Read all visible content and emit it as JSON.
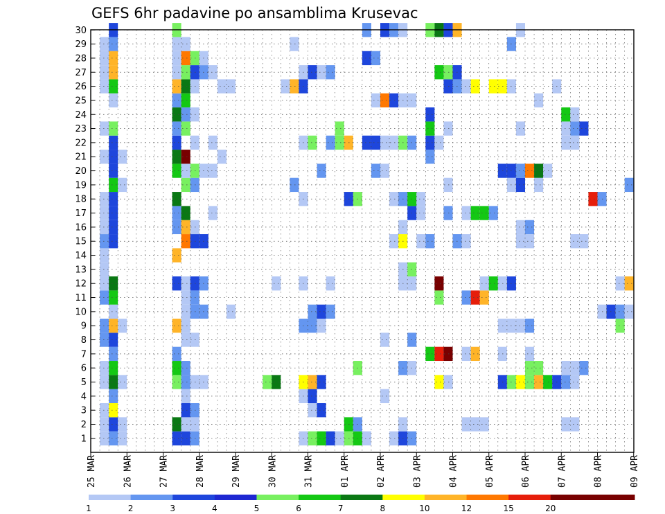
{
  "chart_data": {
    "type": "heatmap",
    "title": "GEFS 6hr padavine po ansamblima Krusevac",
    "xlabel": "",
    "ylabel": "",
    "members": [
      1,
      2,
      3,
      4,
      5,
      6,
      7,
      8,
      9,
      10,
      11,
      12,
      13,
      14,
      15,
      16,
      17,
      18,
      19,
      20,
      21,
      22,
      23,
      24,
      25,
      26,
      27,
      28,
      29,
      30
    ],
    "x_tick_labels": [
      "25 MAR",
      "26 MAR",
      "27 MAR",
      "28 MAR",
      "29 MAR",
      "30 MAR",
      "31 MAR",
      "01 APR",
      "02 APR",
      "03 APR",
      "04 APR",
      "05 APR",
      "06 APR",
      "07 APR",
      "08 APR",
      "09 APR"
    ],
    "time_step": "6hr",
    "ylim": [
      1,
      30
    ],
    "grid": true,
    "legend": {
      "position": "bottom",
      "levels": [
        "1",
        "2",
        "3",
        "4",
        "5",
        "6",
        "7",
        "8",
        "10",
        "12",
        "15",
        "20"
      ],
      "colors": [
        "#b4c8f5",
        "#6496f0",
        "#1e46dc",
        "#1e28d2",
        "#78f060",
        "#14c814",
        "#0a7814",
        "#ffff00",
        "#ffb428",
        "#ff7800",
        "#e61e0a",
        "#780000",
        "#780000"
      ]
    },
    "cells": [
      [
        1,
        2,
        1
      ],
      [
        1,
        3,
        2
      ],
      [
        1,
        4,
        1
      ],
      [
        1,
        10,
        3
      ],
      [
        1,
        11,
        3
      ],
      [
        1,
        12,
        2
      ],
      [
        1,
        24,
        1
      ],
      [
        1,
        25,
        5
      ],
      [
        1,
        26,
        6
      ],
      [
        1,
        27,
        3
      ],
      [
        1,
        28,
        1
      ],
      [
        1,
        29,
        5
      ],
      [
        1,
        30,
        6
      ],
      [
        1,
        31,
        1
      ],
      [
        1,
        34,
        1
      ],
      [
        1,
        35,
        3
      ],
      [
        1,
        36,
        2
      ],
      [
        2,
        2,
        1
      ],
      [
        2,
        3,
        3
      ],
      [
        2,
        4,
        1
      ],
      [
        2,
        10,
        7
      ],
      [
        2,
        11,
        1
      ],
      [
        2,
        12,
        1
      ],
      [
        2,
        29,
        6
      ],
      [
        2,
        30,
        2
      ],
      [
        2,
        35,
        1
      ],
      [
        2,
        42,
        1
      ],
      [
        2,
        43,
        1
      ],
      [
        2,
        44,
        1
      ],
      [
        2,
        53,
        1
      ],
      [
        2,
        54,
        1
      ],
      [
        3,
        2,
        1
      ],
      [
        3,
        3,
        8
      ],
      [
        3,
        11,
        3
      ],
      [
        3,
        12,
        2
      ],
      [
        3,
        25,
        1
      ],
      [
        3,
        26,
        3
      ],
      [
        4,
        3,
        2
      ],
      [
        4,
        11,
        1
      ],
      [
        4,
        24,
        1
      ],
      [
        4,
        25,
        3
      ],
      [
        4,
        33,
        1
      ],
      [
        5,
        2,
        1
      ],
      [
        5,
        3,
        7
      ],
      [
        5,
        4,
        1
      ],
      [
        5,
        10,
        5
      ],
      [
        5,
        11,
        2
      ],
      [
        5,
        12,
        1
      ],
      [
        5,
        13,
        1
      ],
      [
        5,
        20,
        5
      ],
      [
        5,
        21,
        7
      ],
      [
        5,
        24,
        8
      ],
      [
        5,
        25,
        9
      ],
      [
        5,
        26,
        3
      ],
      [
        5,
        39,
        8
      ],
      [
        5,
        40,
        1
      ],
      [
        5,
        46,
        3
      ],
      [
        5,
        47,
        5
      ],
      [
        5,
        48,
        8
      ],
      [
        5,
        49,
        5
      ],
      [
        5,
        50,
        9
      ],
      [
        5,
        51,
        6
      ],
      [
        5,
        52,
        3
      ],
      [
        5,
        53,
        2
      ],
      [
        5,
        54,
        1
      ],
      [
        6,
        2,
        1
      ],
      [
        6,
        3,
        6
      ],
      [
        6,
        10,
        6
      ],
      [
        6,
        11,
        2
      ],
      [
        6,
        30,
        5
      ],
      [
        6,
        35,
        2
      ],
      [
        6,
        36,
        1
      ],
      [
        6,
        49,
        5
      ],
      [
        6,
        50,
        5
      ],
      [
        6,
        53,
        1
      ],
      [
        6,
        54,
        1
      ],
      [
        6,
        55,
        2
      ],
      [
        7,
        3,
        2
      ],
      [
        7,
        10,
        2
      ],
      [
        7,
        38,
        6
      ],
      [
        7,
        39,
        11
      ],
      [
        7,
        40,
        12
      ],
      [
        7,
        42,
        1
      ],
      [
        7,
        43,
        9
      ],
      [
        7,
        46,
        1
      ],
      [
        7,
        49,
        1
      ],
      [
        8,
        2,
        2
      ],
      [
        8,
        3,
        3
      ],
      [
        8,
        11,
        1
      ],
      [
        8,
        12,
        1
      ],
      [
        8,
        33,
        1
      ],
      [
        8,
        36,
        2
      ],
      [
        9,
        2,
        2
      ],
      [
        9,
        3,
        9
      ],
      [
        9,
        4,
        1
      ],
      [
        9,
        10,
        9
      ],
      [
        9,
        11,
        1
      ],
      [
        9,
        24,
        2
      ],
      [
        9,
        25,
        2
      ],
      [
        9,
        26,
        1
      ],
      [
        9,
        46,
        1
      ],
      [
        9,
        47,
        1
      ],
      [
        9,
        48,
        1
      ],
      [
        9,
        49,
        2
      ],
      [
        9,
        59,
        5
      ],
      [
        10,
        3,
        1
      ],
      [
        10,
        11,
        1
      ],
      [
        10,
        12,
        2
      ],
      [
        10,
        13,
        2
      ],
      [
        10,
        16,
        1
      ],
      [
        10,
        25,
        2
      ],
      [
        10,
        26,
        3
      ],
      [
        10,
        27,
        2
      ],
      [
        10,
        57,
        1
      ],
      [
        10,
        58,
        3
      ],
      [
        10,
        59,
        2
      ],
      [
        10,
        60,
        1
      ],
      [
        11,
        2,
        2
      ],
      [
        11,
        3,
        6
      ],
      [
        11,
        11,
        1
      ],
      [
        11,
        12,
        2
      ],
      [
        11,
        39,
        5
      ],
      [
        11,
        42,
        2
      ],
      [
        11,
        43,
        11
      ],
      [
        11,
        44,
        9
      ],
      [
        12,
        2,
        1
      ],
      [
        12,
        3,
        7
      ],
      [
        12,
        10,
        3
      ],
      [
        12,
        11,
        1
      ],
      [
        12,
        12,
        3
      ],
      [
        12,
        13,
        2
      ],
      [
        12,
        21,
        1
      ],
      [
        12,
        24,
        1
      ],
      [
        12,
        27,
        1
      ],
      [
        12,
        35,
        1
      ],
      [
        12,
        36,
        1
      ],
      [
        12,
        39,
        12
      ],
      [
        12,
        44,
        1
      ],
      [
        12,
        45,
        6
      ],
      [
        12,
        46,
        1
      ],
      [
        12,
        47,
        3
      ],
      [
        12,
        59,
        1
      ],
      [
        12,
        60,
        9
      ],
      [
        13,
        2,
        1
      ],
      [
        13,
        35,
        1
      ],
      [
        13,
        36,
        5
      ],
      [
        14,
        2,
        1
      ],
      [
        14,
        10,
        9
      ],
      [
        15,
        2,
        2
      ],
      [
        15,
        3,
        3
      ],
      [
        15,
        11,
        10
      ],
      [
        15,
        12,
        3
      ],
      [
        15,
        13,
        3
      ],
      [
        15,
        34,
        1
      ],
      [
        15,
        35,
        8
      ],
      [
        15,
        37,
        1
      ],
      [
        15,
        38,
        2
      ],
      [
        15,
        41,
        2
      ],
      [
        15,
        42,
        1
      ],
      [
        15,
        48,
        1
      ],
      [
        15,
        49,
        1
      ],
      [
        15,
        54,
        1
      ],
      [
        15,
        55,
        1
      ],
      [
        16,
        2,
        1
      ],
      [
        16,
        3,
        3
      ],
      [
        16,
        10,
        2
      ],
      [
        16,
        11,
        9
      ],
      [
        16,
        12,
        1
      ],
      [
        16,
        35,
        1
      ],
      [
        16,
        48,
        1
      ],
      [
        16,
        49,
        2
      ],
      [
        17,
        2,
        1
      ],
      [
        17,
        3,
        3
      ],
      [
        17,
        10,
        2
      ],
      [
        17,
        11,
        7
      ],
      [
        17,
        14,
        1
      ],
      [
        17,
        36,
        3
      ],
      [
        17,
        37,
        1
      ],
      [
        17,
        40,
        2
      ],
      [
        17,
        42,
        1
      ],
      [
        17,
        43,
        6
      ],
      [
        17,
        44,
        6
      ],
      [
        17,
        45,
        2
      ],
      [
        18,
        2,
        1
      ],
      [
        18,
        3,
        3
      ],
      [
        18,
        10,
        7
      ],
      [
        18,
        24,
        1
      ],
      [
        18,
        29,
        3
      ],
      [
        18,
        30,
        5
      ],
      [
        18,
        34,
        1
      ],
      [
        18,
        35,
        2
      ],
      [
        18,
        36,
        6
      ],
      [
        18,
        37,
        1
      ],
      [
        18,
        56,
        11
      ],
      [
        18,
        57,
        2
      ],
      [
        19,
        3,
        6
      ],
      [
        19,
        4,
        1
      ],
      [
        19,
        11,
        5
      ],
      [
        19,
        12,
        2
      ],
      [
        19,
        23,
        2
      ],
      [
        19,
        40,
        1
      ],
      [
        19,
        47,
        1
      ],
      [
        19,
        48,
        3
      ],
      [
        19,
        50,
        1
      ],
      [
        19,
        60,
        2
      ],
      [
        20,
        3,
        3
      ],
      [
        20,
        10,
        6
      ],
      [
        20,
        11,
        1
      ],
      [
        20,
        12,
        5
      ],
      [
        20,
        13,
        1
      ],
      [
        20,
        14,
        1
      ],
      [
        20,
        26,
        2
      ],
      [
        20,
        32,
        2
      ],
      [
        20,
        33,
        1
      ],
      [
        20,
        46,
        3
      ],
      [
        20,
        47,
        3
      ],
      [
        20,
        48,
        2
      ],
      [
        20,
        49,
        10
      ],
      [
        20,
        50,
        7
      ],
      [
        20,
        51,
        1
      ],
      [
        21,
        2,
        1
      ],
      [
        21,
        3,
        3
      ],
      [
        21,
        4,
        1
      ],
      [
        21,
        10,
        7
      ],
      [
        21,
        11,
        12
      ],
      [
        21,
        15,
        1
      ],
      [
        21,
        38,
        2
      ],
      [
        22,
        3,
        3
      ],
      [
        22,
        10,
        3
      ],
      [
        22,
        12,
        1
      ],
      [
        22,
        14,
        1
      ],
      [
        22,
        24,
        1
      ],
      [
        22,
        25,
        5
      ],
      [
        22,
        27,
        2
      ],
      [
        22,
        28,
        5
      ],
      [
        22,
        29,
        9
      ],
      [
        22,
        31,
        3
      ],
      [
        22,
        32,
        3
      ],
      [
        22,
        33,
        1
      ],
      [
        22,
        34,
        1
      ],
      [
        22,
        35,
        5
      ],
      [
        22,
        36,
        2
      ],
      [
        22,
        38,
        3
      ],
      [
        22,
        39,
        1
      ],
      [
        22,
        53,
        1
      ],
      [
        22,
        54,
        1
      ],
      [
        23,
        2,
        1
      ],
      [
        23,
        3,
        5
      ],
      [
        23,
        10,
        2
      ],
      [
        23,
        11,
        5
      ],
      [
        23,
        28,
        5
      ],
      [
        23,
        38,
        6
      ],
      [
        23,
        40,
        1
      ],
      [
        23,
        48,
        1
      ],
      [
        23,
        53,
        1
      ],
      [
        23,
        54,
        2
      ],
      [
        23,
        55,
        3
      ],
      [
        24,
        10,
        7
      ],
      [
        24,
        11,
        2
      ],
      [
        24,
        12,
        1
      ],
      [
        24,
        38,
        3
      ],
      [
        24,
        53,
        6
      ],
      [
        24,
        54,
        1
      ],
      [
        25,
        3,
        1
      ],
      [
        25,
        10,
        2
      ],
      [
        25,
        11,
        6
      ],
      [
        25,
        32,
        1
      ],
      [
        25,
        33,
        10
      ],
      [
        25,
        34,
        3
      ],
      [
        25,
        35,
        1
      ],
      [
        25,
        36,
        1
      ],
      [
        25,
        50,
        1
      ],
      [
        26,
        2,
        1
      ],
      [
        26,
        3,
        6
      ],
      [
        26,
        10,
        9
      ],
      [
        26,
        11,
        7
      ],
      [
        26,
        12,
        1
      ],
      [
        26,
        15,
        1
      ],
      [
        26,
        16,
        1
      ],
      [
        26,
        22,
        1
      ],
      [
        26,
        23,
        9
      ],
      [
        26,
        24,
        3
      ],
      [
        26,
        40,
        3
      ],
      [
        26,
        41,
        2
      ],
      [
        26,
        42,
        1
      ],
      [
        26,
        43,
        8
      ],
      [
        26,
        45,
        8
      ],
      [
        26,
        46,
        8
      ],
      [
        26,
        47,
        1
      ],
      [
        26,
        52,
        1
      ],
      [
        27,
        2,
        1
      ],
      [
        27,
        3,
        9
      ],
      [
        27,
        10,
        1
      ],
      [
        27,
        11,
        5
      ],
      [
        27,
        12,
        3
      ],
      [
        27,
        13,
        2
      ],
      [
        27,
        14,
        1
      ],
      [
        27,
        24,
        1
      ],
      [
        27,
        25,
        3
      ],
      [
        27,
        26,
        1
      ],
      [
        27,
        27,
        2
      ],
      [
        27,
        39,
        6
      ],
      [
        27,
        40,
        5
      ],
      [
        27,
        41,
        3
      ],
      [
        28,
        2,
        1
      ],
      [
        28,
        3,
        9
      ],
      [
        28,
        10,
        1
      ],
      [
        28,
        11,
        10
      ],
      [
        28,
        12,
        5
      ],
      [
        28,
        13,
        1
      ],
      [
        28,
        31,
        3
      ],
      [
        28,
        32,
        2
      ],
      [
        29,
        2,
        1
      ],
      [
        29,
        3,
        2
      ],
      [
        29,
        10,
        1
      ],
      [
        29,
        11,
        1
      ],
      [
        29,
        23,
        1
      ],
      [
        29,
        47,
        2
      ],
      [
        30,
        3,
        3
      ],
      [
        30,
        10,
        5
      ],
      [
        30,
        31,
        2
      ],
      [
        30,
        33,
        3
      ],
      [
        30,
        34,
        2
      ],
      [
        30,
        35,
        1
      ],
      [
        30,
        38,
        5
      ],
      [
        30,
        39,
        7
      ],
      [
        30,
        40,
        3
      ],
      [
        30,
        41,
        9
      ],
      [
        30,
        48,
        1
      ]
    ]
  }
}
